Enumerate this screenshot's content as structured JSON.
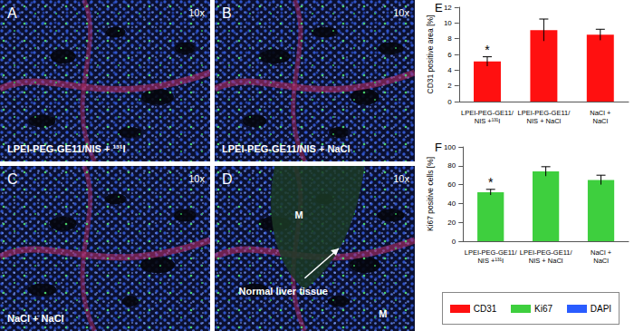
{
  "panels": [
    {
      "letter": "A",
      "magnification": "10x",
      "caption": "LPEI-PEG-GE11/NIS + ¹³¹I"
    },
    {
      "letter": "B",
      "magnification": "10x",
      "caption": "LPEI-PEG-GE11/NIS + NaCl"
    },
    {
      "letter": "C",
      "magnification": "10x",
      "caption": "NaCl + NaCl"
    },
    {
      "letter": "D",
      "magnification": "10x",
      "labels": [
        "M",
        "M"
      ],
      "annotation": "Normal liver tissue"
    }
  ],
  "chart_data": [
    {
      "panel": "E",
      "type": "bar",
      "ylabel": "CD31 positive area [%]",
      "categories": [
        "LPEI-PEG-GE11/NIS +¹³¹I",
        "LPEI-PEG-GE11/NIS + NaCl",
        "NaCl + NaCl"
      ],
      "values": [
        5.1,
        9.1,
        8.5
      ],
      "errors": [
        0.6,
        1.4,
        0.7
      ],
      "color": "#ff1010",
      "ylim": [
        0,
        12
      ],
      "yticks": [
        0,
        2,
        4,
        6,
        8,
        10,
        12
      ],
      "grid": false,
      "annotations": [
        {
          "category": "LPEI-PEG-GE11/NIS +¹³¹I",
          "text": "*"
        }
      ]
    },
    {
      "panel": "F",
      "type": "bar",
      "ylabel": "Ki67 positive cells [%]",
      "categories": [
        "LPEI-PEG-GE11/NIS +¹³¹I",
        "LPEI-PEG-GE11/NIS + NaCl",
        "NaCl + NaCl"
      ],
      "values": [
        52,
        74,
        65
      ],
      "errors": [
        3,
        5,
        5
      ],
      "color": "#3ecf3e",
      "ylim": [
        0,
        100
      ],
      "yticks": [
        0,
        20,
        40,
        60,
        80,
        100
      ],
      "grid": false,
      "annotations": [
        {
          "category": "LPEI-PEG-GE11/NIS +¹³¹I",
          "text": "*"
        }
      ]
    }
  ],
  "legend": [
    {
      "name": "CD31",
      "color": "#ff1010"
    },
    {
      "name": "Ki67",
      "color": "#3ecf3e"
    },
    {
      "name": "DAPI",
      "color": "#2a5cff"
    }
  ]
}
